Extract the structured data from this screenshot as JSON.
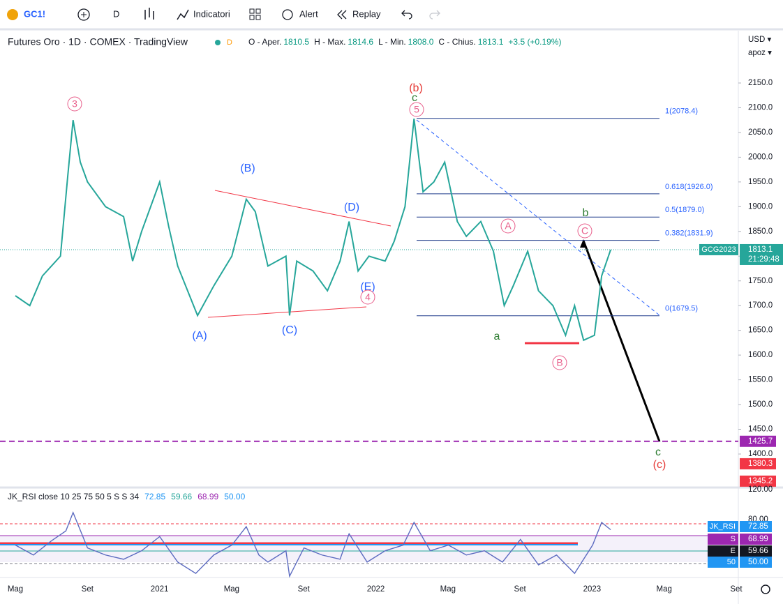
{
  "toolbar": {
    "symbol": "GC1!",
    "interval": "D",
    "indicators": "Indicatori",
    "alert": "Alert",
    "replay": "Replay"
  },
  "legend": {
    "title": "Futures Oro · 1D · COMEX · TradingView",
    "badge": "D",
    "ohlc": [
      {
        "label": "O - Aper.",
        "value": "1810.5"
      },
      {
        "label": "H - Max.",
        "value": "1814.6"
      },
      {
        "label": "L - Min.",
        "value": "1808.0"
      },
      {
        "label": "C - Chius.",
        "value": "1813.1"
      }
    ],
    "change": "+3.5 (+0.19%)"
  },
  "price_axis": {
    "currency": "USD ▾",
    "mode": "apoz ▾",
    "ticks": [
      {
        "value": 2150,
        "label": "2150.0"
      },
      {
        "value": 2100,
        "label": "2100.0"
      },
      {
        "value": 2050,
        "label": "2050.0"
      },
      {
        "value": 2000,
        "label": "2000.0"
      },
      {
        "value": 1950,
        "label": "1950.0"
      },
      {
        "value": 1900,
        "label": "1900.0"
      },
      {
        "value": 1850,
        "label": "1850.0"
      },
      {
        "value": 1800,
        "label": "1800.0"
      },
      {
        "value": 1750,
        "label": "1750.0"
      },
      {
        "value": 1700,
        "label": "1700.0"
      },
      {
        "value": 1650,
        "label": "1650.0"
      },
      {
        "value": 1600,
        "label": "1600.0"
      },
      {
        "value": 1550,
        "label": "1550.0"
      },
      {
        "value": 1500,
        "label": "1500.0"
      },
      {
        "value": 1450,
        "label": "1450.0"
      },
      {
        "value": 1400,
        "label": "1400.0"
      }
    ],
    "current": {
      "label": "GCG2023",
      "value": 1813.1,
      "countdown": "21:29:48"
    },
    "alerts": [
      1425.7,
      1380.3,
      1345.2
    ]
  },
  "time_axis": {
    "labels": [
      "Mag",
      "Set",
      "2021",
      "Mag",
      "Set",
      "2022",
      "Mag",
      "Set",
      "2023",
      "Mag",
      "Set"
    ]
  },
  "price_path": {
    "months": [
      0,
      0.8,
      1.5,
      2.5,
      2.9,
      3.2,
      3.6,
      4,
      5,
      6,
      6.5,
      7,
      8,
      8.5,
      9,
      10.1,
      11,
      12,
      12.8,
      13.3,
      14,
      15,
      15.2,
      15.6,
      16.5,
      17.3,
      18,
      18.5,
      19,
      19.6,
      20.5,
      21,
      21.6,
      22.1,
      22.6,
      23.2,
      23.8,
      24.5,
      25,
      25.8,
      26.5,
      27.1,
      27.6,
      28.4,
      29,
      29.8,
      30.5,
      31,
      31.5,
      32.1,
      32.5,
      33
    ],
    "prices": [
      1720,
      1700,
      1760,
      1800,
      1960,
      2075,
      1990,
      1950,
      1900,
      1880,
      1790,
      1850,
      1950,
      1860,
      1780,
      1680,
      1740,
      1800,
      1915,
      1890,
      1780,
      1800,
      1680,
      1790,
      1770,
      1730,
      1790,
      1870,
      1770,
      1800,
      1790,
      1830,
      1900,
      2078,
      1930,
      1950,
      1990,
      1870,
      1840,
      1870,
      1810,
      1700,
      1740,
      1810,
      1730,
      1700,
      1640,
      1700,
      1630,
      1640,
      1760,
      1813
    ]
  },
  "fib_levels": [
    {
      "value": 2078.4,
      "label": "1(2078.4)"
    },
    {
      "value": 1926.0,
      "label": "0.618(1926.0)"
    },
    {
      "value": 1879.0,
      "label": "0.5(1879.0)"
    },
    {
      "value": 1831.9,
      "label": "0.382(1831.9)"
    },
    {
      "value": 1679.5,
      "label": "0(1679.5)"
    }
  ],
  "waves": [
    "3",
    "(b)",
    "c",
    "5",
    "(B)",
    "(D)",
    "(E)",
    "4",
    "(A)",
    "(C)",
    "A",
    "b",
    "C",
    "a",
    "B",
    "c",
    "(c)"
  ],
  "rsi": {
    "header": "JK_RSI close 10 25 75 50 5 S S 34",
    "header_values": [
      "72.85",
      "59.66",
      "68.99",
      "50.00"
    ],
    "top_label": "120.00",
    "ticks": [
      {
        "value": 80,
        "label": "80.00"
      }
    ],
    "badges": [
      {
        "name": "JK_RSI",
        "value": "72.85"
      },
      {
        "name": "S",
        "value": "68.99"
      },
      {
        "name": "E",
        "value": "59.66"
      },
      {
        "name": "50",
        "value": "50.00"
      }
    ],
    "months": [
      0,
      1,
      2,
      2.8,
      3.2,
      4,
      5,
      6,
      7,
      8,
      9,
      10,
      11,
      12,
      12.8,
      13.5,
      14,
      15,
      15.2,
      16,
      17,
      18,
      18.5,
      19.5,
      20.5,
      21.5,
      22.1,
      23,
      24,
      25,
      26,
      27,
      28,
      29,
      30,
      31,
      32,
      32.5,
      33
    ],
    "values": [
      62,
      55,
      65,
      72,
      85,
      60,
      55,
      52,
      58,
      68,
      50,
      42,
      55,
      62,
      75,
      55,
      50,
      58,
      40,
      60,
      55,
      52,
      70,
      50,
      58,
      62,
      78,
      58,
      62,
      55,
      58,
      50,
      66,
      48,
      55,
      42,
      62,
      78,
      72.85
    ]
  }
}
